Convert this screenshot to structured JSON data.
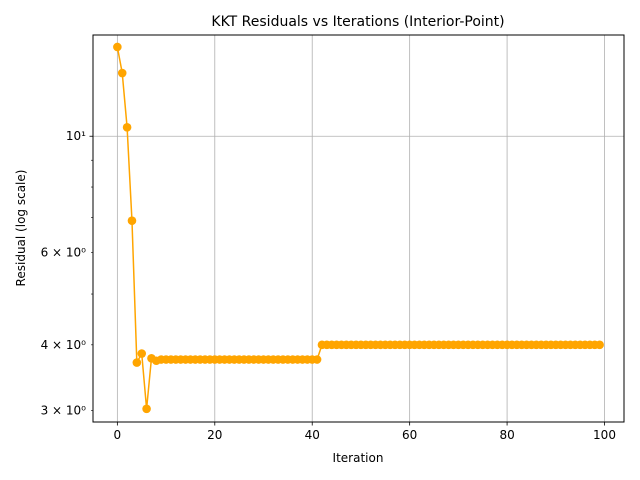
{
  "chart_data": {
    "type": "line",
    "title": "KKT Residuals vs Iterations (Interior-Point)",
    "xlabel": "Iteration",
    "ylabel": "Residual (log scale)",
    "yscale": "log",
    "xlim": [
      -5,
      104
    ],
    "ylim": [
      2.85,
      15.6
    ],
    "grid": true,
    "color": "#FFA500",
    "marker": "circle",
    "xticks": [
      0,
      20,
      40,
      60,
      80,
      100
    ],
    "xtick_labels": [
      "0",
      "20",
      "40",
      "60",
      "80",
      "100"
    ],
    "yticks_major": [
      10
    ],
    "ytick_major_labels": [
      "10¹"
    ],
    "yticks_minor": [
      3,
      4,
      6
    ],
    "ytick_minor_labels": [
      "3 × 10⁰",
      "4 × 10⁰",
      "6 × 10⁰"
    ],
    "series": [
      {
        "name": "",
        "points": [
          [
            0,
            14.8
          ],
          [
            1,
            13.2
          ],
          [
            2,
            10.4
          ],
          [
            3,
            6.9
          ],
          [
            4,
            3.7
          ],
          [
            5,
            3.85
          ],
          [
            6,
            3.02
          ],
          [
            7,
            3.77
          ],
          [
            8,
            3.73
          ],
          [
            9,
            3.75
          ],
          [
            10,
            3.75
          ],
          [
            11,
            3.75
          ],
          [
            12,
            3.75
          ],
          [
            13,
            3.75
          ],
          [
            14,
            3.75
          ],
          [
            15,
            3.75
          ],
          [
            16,
            3.75
          ],
          [
            17,
            3.75
          ],
          [
            18,
            3.75
          ],
          [
            19,
            3.75
          ],
          [
            20,
            3.75
          ],
          [
            21,
            3.75
          ],
          [
            22,
            3.75
          ],
          [
            23,
            3.75
          ],
          [
            24,
            3.75
          ],
          [
            25,
            3.75
          ],
          [
            26,
            3.75
          ],
          [
            27,
            3.75
          ],
          [
            28,
            3.75
          ],
          [
            29,
            3.75
          ],
          [
            30,
            3.75
          ],
          [
            31,
            3.75
          ],
          [
            32,
            3.75
          ],
          [
            33,
            3.75
          ],
          [
            34,
            3.75
          ],
          [
            35,
            3.75
          ],
          [
            36,
            3.75
          ],
          [
            37,
            3.75
          ],
          [
            38,
            3.75
          ],
          [
            39,
            3.75
          ],
          [
            40,
            3.75
          ],
          [
            41,
            3.75
          ],
          [
            42,
            4.0
          ],
          [
            43,
            4.0
          ],
          [
            44,
            4.0
          ],
          [
            45,
            4.0
          ],
          [
            46,
            4.0
          ],
          [
            47,
            4.0
          ],
          [
            48,
            4.0
          ],
          [
            49,
            4.0
          ],
          [
            50,
            4.0
          ],
          [
            51,
            4.0
          ],
          [
            52,
            4.0
          ],
          [
            53,
            4.0
          ],
          [
            54,
            4.0
          ],
          [
            55,
            4.0
          ],
          [
            56,
            4.0
          ],
          [
            57,
            4.0
          ],
          [
            58,
            4.0
          ],
          [
            59,
            4.0
          ],
          [
            60,
            4.0
          ],
          [
            61,
            4.0
          ],
          [
            62,
            4.0
          ],
          [
            63,
            4.0
          ],
          [
            64,
            4.0
          ],
          [
            65,
            4.0
          ],
          [
            66,
            4.0
          ],
          [
            67,
            4.0
          ],
          [
            68,
            4.0
          ],
          [
            69,
            4.0
          ],
          [
            70,
            4.0
          ],
          [
            71,
            4.0
          ],
          [
            72,
            4.0
          ],
          [
            73,
            4.0
          ],
          [
            74,
            4.0
          ],
          [
            75,
            4.0
          ],
          [
            76,
            4.0
          ],
          [
            77,
            4.0
          ],
          [
            78,
            4.0
          ],
          [
            79,
            4.0
          ],
          [
            80,
            4.0
          ],
          [
            81,
            4.0
          ],
          [
            82,
            4.0
          ],
          [
            83,
            4.0
          ],
          [
            84,
            4.0
          ],
          [
            85,
            4.0
          ],
          [
            86,
            4.0
          ],
          [
            87,
            4.0
          ],
          [
            88,
            4.0
          ],
          [
            89,
            4.0
          ],
          [
            90,
            4.0
          ],
          [
            91,
            4.0
          ],
          [
            92,
            4.0
          ],
          [
            93,
            4.0
          ],
          [
            94,
            4.0
          ],
          [
            95,
            4.0
          ],
          [
            96,
            4.0
          ],
          [
            97,
            4.0
          ],
          [
            98,
            4.0
          ],
          [
            99,
            4.0
          ]
        ]
      }
    ]
  }
}
